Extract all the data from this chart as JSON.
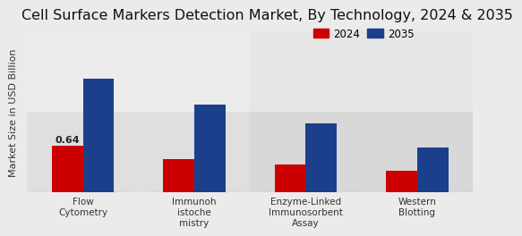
{
  "title": "Cell Surface Markers Detection Market, By Technology, 2024 & 2035",
  "ylabel": "Market Size in USD Billion",
  "categories": [
    "Flow\nCytometry",
    "Immunoh\nistoche\nmistry",
    "Enzyme-Linked\nImmunosorbent\nAssay",
    "Western\nBlotting"
  ],
  "values_2024": [
    0.64,
    0.45,
    0.38,
    0.3
  ],
  "values_2035": [
    1.55,
    1.2,
    0.95,
    0.62
  ],
  "color_2024": "#cc0000",
  "color_2035": "#1c3f8c",
  "legend_2024": "2024",
  "legend_2035": "2035",
  "bar_annotation": "0.64",
  "bar_width": 0.28,
  "ylim": [
    0,
    2.2
  ],
  "title_fontsize": 11.5,
  "axis_label_fontsize": 8,
  "tick_fontsize": 7.5,
  "legend_fontsize": 8.5,
  "bg_color": "#ebebeb"
}
